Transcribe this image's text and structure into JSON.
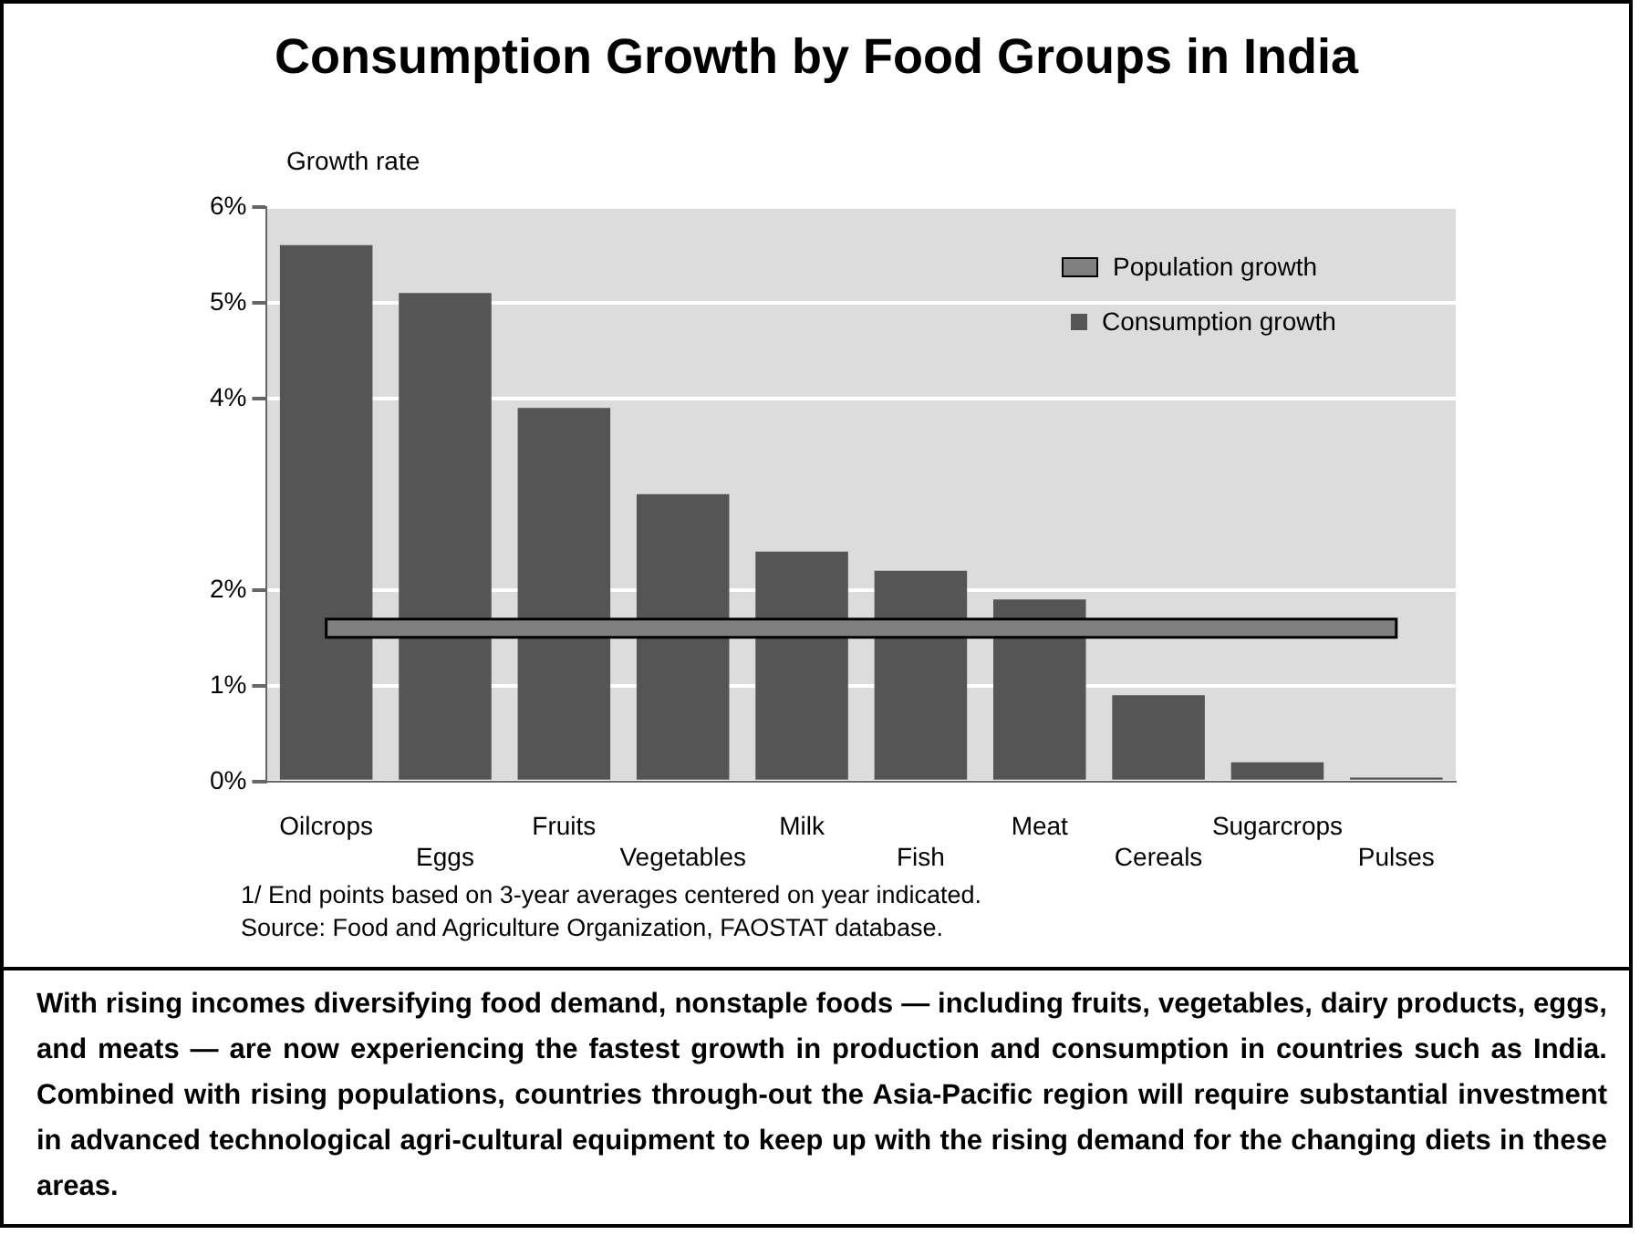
{
  "chart_data": {
    "type": "bar",
    "title": "Consumption Growth by Food Groups in India",
    "ylabel": "Growth rate",
    "categories": [
      "Oilcrops",
      "Eggs",
      "Fruits",
      "Vegetables",
      "Milk",
      "Fish",
      "Meat",
      "Cereals",
      "Sugarcrops",
      "Pulses"
    ],
    "series": [
      {
        "name": "Population growth",
        "type": "line",
        "color": "#808080",
        "values": [
          1.6,
          1.6,
          1.6,
          1.6,
          1.6,
          1.6,
          1.6,
          1.6,
          1.6,
          1.6
        ]
      },
      {
        "name": "Consumption growth",
        "color": "#555555",
        "values": [
          5.6,
          5.1,
          3.9,
          3.0,
          2.4,
          2.2,
          1.9,
          0.9,
          0.2,
          0.04
        ]
      }
    ],
    "ylim": [
      0,
      6
    ],
    "yticks": [
      {
        "value": 0,
        "label": "0%"
      },
      {
        "value": 1,
        "label": "1%"
      },
      {
        "value": 2,
        "label": "2%"
      },
      {
        "value": 4,
        "label": "4%"
      },
      {
        "value": 5,
        "label": "5%"
      },
      {
        "value": 6,
        "label": "6%"
      }
    ],
    "grid": "y",
    "legend": "top right",
    "annotations": [
      "1/ End points based on 3-year averages centered on year indicated.",
      "Source: Food and Agriculture Organization, FAOSTAT database.",
      "With rising incomes diversifying food demand, nonstaple foods — including fruits, vegetables, dairy products, eggs, and meats — are now experiencing the fastest growth in production and consumption in countries such as India. Combined with rising populations, countries through-out the Asia-Pacific region will require substantial investment in advanced technological agri-cultural equipment to keep up with the rising demand for the changing diets in these areas."
    ]
  }
}
